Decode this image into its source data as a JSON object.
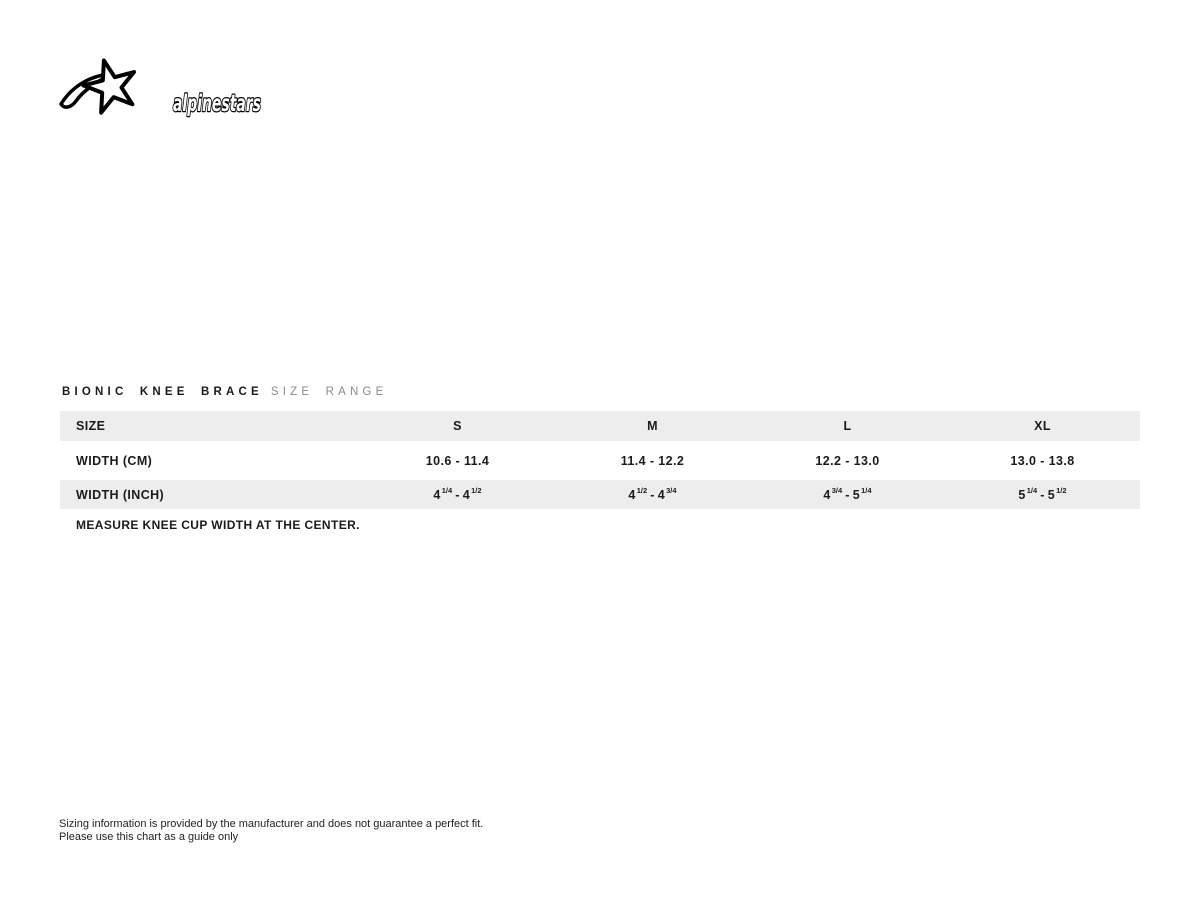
{
  "logo": {
    "brand": "alpinestars"
  },
  "title": {
    "product": "BIONIC KNEE BRACE",
    "suffix": "SIZE RANGE"
  },
  "table": {
    "header": [
      "SIZE",
      "S",
      "M",
      "L",
      "XL"
    ],
    "rows": [
      {
        "label": "WIDTH (CM)",
        "type": "plain",
        "values": [
          "10.6 - 11.4",
          "11.4 - 12.2",
          "12.2 - 13.0",
          "13.0 - 13.8"
        ]
      },
      {
        "label": "WIDTH (INCH)",
        "type": "fraction",
        "values": [
          {
            "from": {
              "int": "4",
              "frac": "1/4"
            },
            "to": {
              "int": "4",
              "frac": "1/2"
            }
          },
          {
            "from": {
              "int": "4",
              "frac": "1/2"
            },
            "to": {
              "int": "4",
              "frac": "3/4"
            }
          },
          {
            "from": {
              "int": "4",
              "frac": "3/4"
            },
            "to": {
              "int": "5",
              "frac": "1/4"
            }
          },
          {
            "from": {
              "int": "5",
              "frac": "1/4"
            },
            "to": {
              "int": "5",
              "frac": "1/2"
            }
          }
        ]
      }
    ],
    "note": "MEASURE KNEE CUP WIDTH AT THE CENTER."
  },
  "footer": {
    "line1": "Sizing information is provided by the manufacturer and does not guarantee a perfect fit.",
    "line2": "Please use this chart as a guide only"
  },
  "colors": {
    "row_alt": "#ededed",
    "text": "#1b1b1b",
    "title_suffix": "#8a8a8a",
    "background": "#ffffff"
  }
}
